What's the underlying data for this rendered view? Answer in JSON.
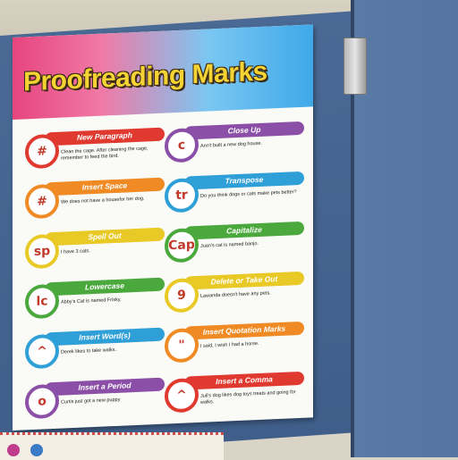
{
  "poster": {
    "title": "Proofreading Marks",
    "left_items": [
      {
        "mark": "#",
        "label": "New Paragraph",
        "example": "Clean the cage. After cleaning the cage, remember to feed the bird.",
        "color": "#e0392f"
      },
      {
        "mark": "#",
        "label": "Insert Space",
        "example": "We does not have a housefor her dog.",
        "color": "#f08a24"
      },
      {
        "mark": "sp",
        "label": "Spell Out",
        "example": "I have 3 cats.",
        "color": "#e9c926"
      },
      {
        "mark": "lc",
        "label": "Lowercase",
        "example": "Abby's Cat is named Frisky.",
        "color": "#4aa83d"
      },
      {
        "mark": "^",
        "label": "Insert Word(s)",
        "example": "Derek likes to take walks.",
        "color": "#2f9fd8"
      },
      {
        "mark": "o",
        "label": "Insert a Period",
        "example": "Curtis just got a new puppy",
        "color": "#8b4fa8"
      }
    ],
    "right_items": [
      {
        "mark": "c",
        "label": "Close Up",
        "example": "Ann't built a new dog house.",
        "color": "#8b4fa8"
      },
      {
        "mark": "tr",
        "label": "Transpose",
        "example": "Do you think dogs or cats make pets better?",
        "color": "#2f9fd8"
      },
      {
        "mark": "Cap",
        "label": "Capitalize",
        "example": "Juan's cat is named banjo.",
        "color": "#4aa83d"
      },
      {
        "mark": "9",
        "label": "Delete or Take Out",
        "example": "Lawanda doesn't have any pets.",
        "color": "#e9c926"
      },
      {
        "mark": "\"",
        "label": "Insert Quotation Marks",
        "example": "I said, I wish I had a horse.",
        "color": "#f08a24"
      },
      {
        "mark": "^",
        "label": "Insert a Comma",
        "example": "Juli's dog likes dog toys treats and going for walks.",
        "color": "#e0392f"
      }
    ]
  }
}
